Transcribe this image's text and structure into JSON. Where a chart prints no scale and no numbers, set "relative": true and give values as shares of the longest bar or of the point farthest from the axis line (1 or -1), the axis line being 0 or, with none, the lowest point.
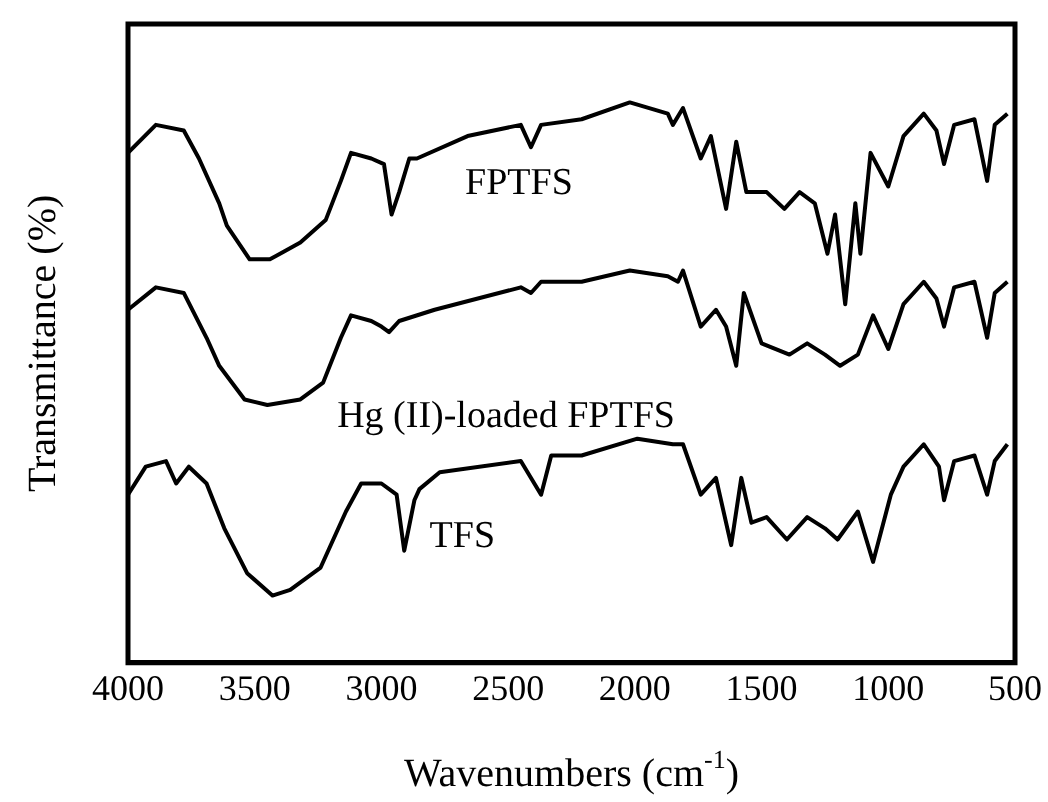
{
  "chart_data": {
    "type": "line",
    "relative": true,
    "xlabel": "Wavenumbers (cm$^{-1}$)",
    "ylabel": "Transmittance (%)",
    "xlim": [
      4000,
      500
    ],
    "xticks": [
      4000,
      3500,
      3000,
      2500,
      2000,
      1500,
      1000,
      500
    ],
    "grid": false,
    "legend": false,
    "marker": "none",
    "line_style": "solid",
    "tick_labels": "x",
    "series": [
      {
        "name": "FPTFS",
        "color": "#000000",
        "x": [
          4000,
          3890,
          3780,
          3720,
          3640,
          3610,
          3520,
          3440,
          3320,
          3220,
          3160,
          3120,
          3040,
          2990,
          2960,
          2930,
          2890,
          2860,
          2660,
          2450,
          2410,
          2370,
          2210,
          2020,
          1870,
          1850,
          1810,
          1740,
          1700,
          1640,
          1600,
          1560,
          1480,
          1410,
          1350,
          1290,
          1240,
          1210,
          1170,
          1130,
          1110,
          1070,
          1000,
          940,
          860,
          810,
          780,
          740,
          660,
          610,
          580,
          530
        ],
        "values": [
          0.91,
          0.96,
          0.95,
          0.9,
          0.82,
          0.78,
          0.72,
          0.72,
          0.75,
          0.79,
          0.86,
          0.91,
          0.9,
          0.89,
          0.8,
          0.84,
          0.9,
          0.9,
          0.94,
          0.96,
          0.92,
          0.96,
          0.97,
          1.0,
          0.98,
          0.96,
          0.99,
          0.9,
          0.94,
          0.81,
          0.93,
          0.84,
          0.84,
          0.81,
          0.84,
          0.82,
          0.73,
          0.8,
          0.64,
          0.82,
          0.73,
          0.91,
          0.85,
          0.94,
          0.98,
          0.95,
          0.89,
          0.96,
          0.97,
          0.86,
          0.96,
          0.98
        ]
      },
      {
        "name": "Hg (II)-loaded FPTFS",
        "color": "#000000",
        "x": [
          4000,
          3890,
          3780,
          3690,
          3640,
          3540,
          3450,
          3320,
          3230,
          3160,
          3120,
          3040,
          3000,
          2970,
          2930,
          2790,
          2450,
          2410,
          2370,
          2210,
          2020,
          1870,
          1830,
          1810,
          1740,
          1680,
          1640,
          1600,
          1570,
          1500,
          1390,
          1320,
          1250,
          1190,
          1120,
          1060,
          1000,
          940,
          860,
          810,
          780,
          740,
          660,
          610,
          580,
          530
        ],
        "values": [
          0.63,
          0.67,
          0.66,
          0.58,
          0.53,
          0.47,
          0.46,
          0.47,
          0.5,
          0.58,
          0.62,
          0.61,
          0.6,
          0.59,
          0.61,
          0.63,
          0.67,
          0.66,
          0.68,
          0.68,
          0.7,
          0.69,
          0.68,
          0.7,
          0.6,
          0.63,
          0.6,
          0.53,
          0.66,
          0.57,
          0.55,
          0.57,
          0.55,
          0.53,
          0.55,
          0.62,
          0.56,
          0.64,
          0.68,
          0.65,
          0.6,
          0.67,
          0.68,
          0.58,
          0.66,
          0.68
        ]
      },
      {
        "name": "TFS",
        "color": "#000000",
        "x": [
          4000,
          3930,
          3850,
          3810,
          3760,
          3690,
          3620,
          3530,
          3430,
          3360,
          3240,
          3140,
          3080,
          3000,
          2940,
          2910,
          2870,
          2850,
          2770,
          2450,
          2370,
          2330,
          2210,
          1990,
          1850,
          1810,
          1740,
          1680,
          1620,
          1580,
          1540,
          1480,
          1400,
          1320,
          1250,
          1200,
          1120,
          1060,
          990,
          940,
          860,
          800,
          780,
          740,
          660,
          610,
          580,
          530
        ],
        "values": [
          0.3,
          0.35,
          0.36,
          0.32,
          0.35,
          0.32,
          0.24,
          0.16,
          0.12,
          0.13,
          0.17,
          0.27,
          0.32,
          0.32,
          0.3,
          0.2,
          0.29,
          0.31,
          0.34,
          0.36,
          0.3,
          0.37,
          0.37,
          0.4,
          0.39,
          0.39,
          0.3,
          0.33,
          0.21,
          0.33,
          0.25,
          0.26,
          0.22,
          0.26,
          0.24,
          0.22,
          0.27,
          0.18,
          0.3,
          0.35,
          0.39,
          0.35,
          0.29,
          0.36,
          0.37,
          0.3,
          0.36,
          0.39
        ]
      }
    ]
  }
}
